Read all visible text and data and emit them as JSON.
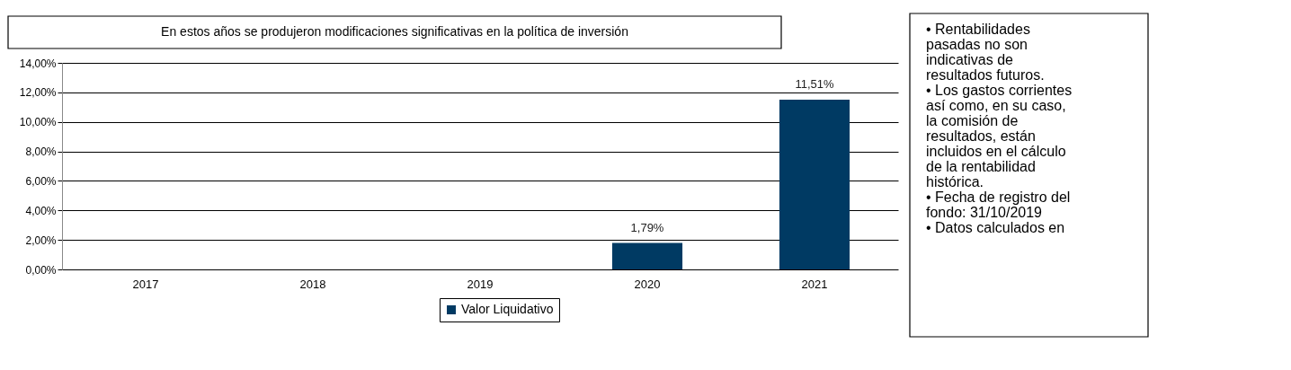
{
  "chart_data": {
    "type": "bar",
    "title": "En  estos años se produjeron modificaciones significativas en la política  de inversión",
    "categories": [
      "2017",
      "2018",
      "2019",
      "2020",
      "2021"
    ],
    "series": [
      {
        "name": "Valor Liquidativo",
        "color": "#003a63",
        "values": [
          null,
          null,
          null,
          1.79,
          11.51
        ],
        "value_labels": [
          null,
          null,
          null,
          "1,79%",
          "11,51%"
        ]
      }
    ],
    "ylim": [
      0,
      14
    ],
    "yticks": [
      {
        "value": 0,
        "label": "0,00%"
      },
      {
        "value": 2,
        "label": "2,00%"
      },
      {
        "value": 4,
        "label": "4,00%"
      },
      {
        "value": 6,
        "label": "6,00%"
      },
      {
        "value": 8,
        "label": "8,00%"
      },
      {
        "value": 10,
        "label": "10,00%"
      },
      {
        "value": 12,
        "label": "12,00%"
      },
      {
        "value": 14,
        "label": "14,00%"
      }
    ],
    "grid": "y",
    "legend": "bottom",
    "annotations": [
      "• Rentabilidades pasadas no son indicativas de resultados futuros.",
      "• Los gastos corrientes así como, en su caso, la comisión de resultados, están incluidos en el cálculo de la rentabilidad histórica.",
      "• Fecha de registro del fondo: 31/10/2019",
      "• Datos calculados en"
    ]
  }
}
